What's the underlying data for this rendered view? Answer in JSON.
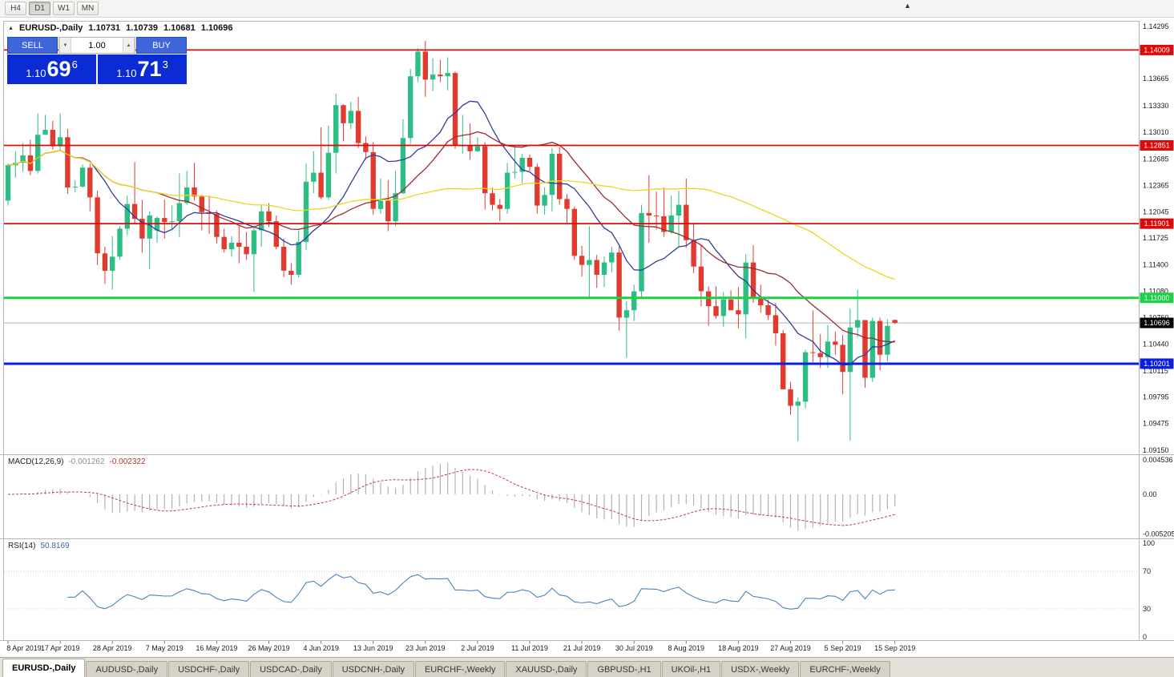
{
  "colors": {
    "candle_up": "#2EBD85",
    "candle_down": "#E13B30",
    "macd_hist": "#B2B2B2",
    "macd_signal": "#C73B3B",
    "rsi_line": "#4F81BD",
    "sell_buy_button": "#3E66DA",
    "price_panel": "#0B2BD4",
    "current_price_tag": "#000000",
    "level_red": "#DE0A0A",
    "level_green": "#1DD045",
    "level_blue": "#0A1EE6"
  },
  "icons": {
    "title_marker": "▲",
    "chart_shift": "▲",
    "spin_up": "▲",
    "spin_down": "▼"
  },
  "toolbar": {
    "timeframes": [
      {
        "label": "H4",
        "active": false
      },
      {
        "label": "D1",
        "active": true
      },
      {
        "label": "W1",
        "active": false
      },
      {
        "label": "MN",
        "active": false
      }
    ]
  },
  "chart_header": {
    "symbol_period": "EURUSD-,Daily",
    "open": "1.10731",
    "high": "1.10739",
    "low": "1.10681",
    "close": "1.10696"
  },
  "trade_panel": {
    "sell_label": "SELL",
    "buy_label": "BUY",
    "volume": "1.00",
    "bid": {
      "prefix": "1.10",
      "big": "69",
      "sup": "6"
    },
    "ask": {
      "prefix": "1.10",
      "big": "71",
      "sup": "3"
    }
  },
  "macd_panel": {
    "name": "MACD(12,26,9)",
    "main_value": "-0.001262",
    "signal_value": "-0.002322"
  },
  "rsi_panel": {
    "name": "RSI(14)",
    "value": "50.8169"
  },
  "tabs": [
    {
      "label": "EURUSD-,Daily",
      "active": true
    },
    {
      "label": "AUDUSD-,Daily",
      "active": false
    },
    {
      "label": "USDCHF-,Daily",
      "active": false
    },
    {
      "label": "USDCAD-,Daily",
      "active": false
    },
    {
      "label": "USDCNH-,Daily",
      "active": false
    },
    {
      "label": "EURCHF-,Weekly",
      "active": false
    },
    {
      "label": "XAUUSD-,Daily",
      "active": false
    },
    {
      "label": "GBPUSD-,H1",
      "active": false
    },
    {
      "label": "UKOil-,H1",
      "active": false
    },
    {
      "label": "USDX-,Weekly",
      "active": false
    },
    {
      "label": "EURCHF-,Weekly",
      "active": false
    }
  ],
  "chart_data": {
    "type": "candlestick",
    "symbol": "EURUSD-",
    "timeframe": "Daily",
    "y_range": [
      1.0915,
      1.14295
    ],
    "current_price": 1.10696,
    "current_price_label": "1.10696",
    "price_axis_labels": [
      "1.14295",
      "1.13980",
      "1.13665",
      "1.13330",
      "1.13010",
      "1.12685",
      "1.12365",
      "1.12045",
      "1.11725",
      "1.11400",
      "1.11080",
      "1.10760",
      "1.10440",
      "1.10115",
      "1.09795",
      "1.09475",
      "1.09150"
    ],
    "x_labels": [
      "8 Apr 2019",
      "17 Apr 2019",
      "28 Apr 2019",
      "7 May 2019",
      "16 May 2019",
      "26 May 2019",
      "4 Jun 2019",
      "13 Jun 2019",
      "23 Jun 2019",
      "2 Jul 2019",
      "11 Jul 2019",
      "21 Jul 2019",
      "30 Jul 2019",
      "8 Aug 2019",
      "18 Aug 2019",
      "27 Aug 2019",
      "5 Sep 2019",
      "15 Sep 2019"
    ],
    "horizontal_levels": [
      {
        "price": 1.14009,
        "label": "1.14009",
        "color": "#DE0A0A",
        "width": 1.8
      },
      {
        "price": 1.12851,
        "label": "1.12851",
        "color": "#DE0A0A",
        "width": 1.8
      },
      {
        "price": 1.11901,
        "label": "1.11901",
        "color": "#DE0A0A",
        "width": 1.8
      },
      {
        "price": 1.11,
        "label": "1.11000",
        "color": "#1DD045",
        "width": 3
      },
      {
        "price": 1.10201,
        "label": "1.10201",
        "color": "#0A1EE6",
        "width": 3
      }
    ],
    "moving_averages": [
      {
        "period": 10,
        "color": "#303C9B"
      },
      {
        "period": 21,
        "color": "#9B2D30"
      },
      {
        "period": 55,
        "color": "#EFD51E"
      }
    ],
    "macd": {
      "params": "12,26,9",
      "main": -0.001262,
      "signal": -0.002322,
      "axis_values": [
        0.004536,
        0,
        -0.005205
      ],
      "axis_labels": [
        "0.004536",
        "0.00",
        "-0.005205"
      ]
    },
    "rsi": {
      "period": 14,
      "value": 50.8169,
      "levels": [
        70,
        30
      ],
      "axis_values": [
        100,
        70,
        30,
        0
      ],
      "axis_labels": [
        "100",
        "70",
        "30",
        "0"
      ]
    },
    "candles_ohlc": [
      [
        1.1218,
        1.1263,
        1.1212,
        1.1261
      ],
      [
        1.1261,
        1.1278,
        1.1246,
        1.1264
      ],
      [
        1.1264,
        1.1288,
        1.1253,
        1.1273
      ],
      [
        1.1273,
        1.1292,
        1.1249,
        1.1254
      ],
      [
        1.1254,
        1.1324,
        1.1251,
        1.1298
      ],
      [
        1.1298,
        1.1322,
        1.1298,
        1.1304
      ],
      [
        1.1304,
        1.1315,
        1.128,
        1.1284
      ],
      [
        1.1284,
        1.1324,
        1.128,
        1.1295
      ],
      [
        1.1295,
        1.1305,
        1.1226,
        1.1234
      ],
      [
        1.1234,
        1.1243,
        1.1228,
        1.1235
      ],
      [
        1.1235,
        1.1262,
        1.1234,
        1.1258
      ],
      [
        1.1258,
        1.1263,
        1.1205,
        1.1222
      ],
      [
        1.1222,
        1.123,
        1.114,
        1.1154
      ],
      [
        1.1154,
        1.1162,
        1.1117,
        1.1133
      ],
      [
        1.1133,
        1.1175,
        1.111,
        1.115
      ],
      [
        1.115,
        1.1187,
        1.1146,
        1.1184
      ],
      [
        1.1184,
        1.1224,
        1.1176,
        1.1214
      ],
      [
        1.1214,
        1.1265,
        1.119,
        1.1196
      ],
      [
        1.1196,
        1.1219,
        1.1155,
        1.1172
      ],
      [
        1.1172,
        1.1205,
        1.1135,
        1.12
      ],
      [
        1.1182,
        1.1199,
        1.1167,
        1.1197
      ],
      [
        1.1197,
        1.1219,
        1.1172,
        1.1192
      ],
      [
        1.1192,
        1.1212,
        1.1182,
        1.1193
      ],
      [
        1.1193,
        1.1251,
        1.1174,
        1.1215
      ],
      [
        1.1215,
        1.1254,
        1.1213,
        1.1234
      ],
      [
        1.1234,
        1.1264,
        1.1218,
        1.1223
      ],
      [
        1.1223,
        1.1225,
        1.1182,
        1.1204
      ],
      [
        1.1204,
        1.1224,
        1.1178,
        1.1202
      ],
      [
        1.1202,
        1.1206,
        1.1166,
        1.1174
      ],
      [
        1.1174,
        1.1184,
        1.1155,
        1.1159
      ],
      [
        1.1159,
        1.1175,
        1.115,
        1.1167
      ],
      [
        1.1167,
        1.1188,
        1.1142,
        1.1162
      ],
      [
        1.1162,
        1.118,
        1.1146,
        1.1153
      ],
      [
        1.1153,
        1.1188,
        1.1107,
        1.1182
      ],
      [
        1.1182,
        1.1213,
        1.1162,
        1.1205
      ],
      [
        1.1205,
        1.1215,
        1.1186,
        1.1193
      ],
      [
        1.1193,
        1.12,
        1.1159,
        1.1162
      ],
      [
        1.1162,
        1.1172,
        1.1125,
        1.1133
      ],
      [
        1.1133,
        1.1142,
        1.1116,
        1.1128
      ],
      [
        1.1128,
        1.1182,
        1.1125,
        1.1168
      ],
      [
        1.1168,
        1.1263,
        1.1158,
        1.1241
      ],
      [
        1.1241,
        1.1278,
        1.1227,
        1.1252
      ],
      [
        1.1252,
        1.1307,
        1.122,
        1.1222
      ],
      [
        1.1222,
        1.1309,
        1.1219,
        1.1276
      ],
      [
        1.1276,
        1.1348,
        1.1251,
        1.1334
      ],
      [
        1.1334,
        1.1335,
        1.129,
        1.1312
      ],
      [
        1.1312,
        1.1338,
        1.1305,
        1.1327
      ],
      [
        1.1327,
        1.1344,
        1.1282,
        1.1288
      ],
      [
        1.1288,
        1.1296,
        1.1268,
        1.1277
      ],
      [
        1.1277,
        1.1289,
        1.1201,
        1.1208
      ],
      [
        1.1208,
        1.1245,
        1.1202,
        1.1218
      ],
      [
        1.1218,
        1.1243,
        1.1181,
        1.1193
      ],
      [
        1.1193,
        1.1254,
        1.1187,
        1.1227
      ],
      [
        1.1227,
        1.1317,
        1.1226,
        1.1294
      ],
      [
        1.1294,
        1.1378,
        1.1287,
        1.1369
      ],
      [
        1.1369,
        1.1403,
        1.1362,
        1.1399
      ],
      [
        1.1399,
        1.1412,
        1.1344,
        1.1365
      ],
      [
        1.1365,
        1.1391,
        1.1351,
        1.1371
      ],
      [
        1.1371,
        1.1389,
        1.1362,
        1.1369
      ],
      [
        1.1369,
        1.1392,
        1.1352,
        1.1373
      ],
      [
        1.1373,
        1.1375,
        1.1281,
        1.1285
      ],
      [
        1.1285,
        1.1322,
        1.1275,
        1.1285
      ],
      [
        1.1285,
        1.1312,
        1.1268,
        1.1278
      ],
      [
        1.1278,
        1.1295,
        1.1277,
        1.1284
      ],
      [
        1.1284,
        1.1289,
        1.1207,
        1.1227
      ],
      [
        1.1227,
        1.1234,
        1.1206,
        1.1213
      ],
      [
        1.1213,
        1.122,
        1.1193,
        1.1208
      ],
      [
        1.1208,
        1.1264,
        1.1202,
        1.1252
      ],
      [
        1.1252,
        1.1285,
        1.1245,
        1.1253
      ],
      [
        1.1253,
        1.1275,
        1.1239,
        1.127
      ],
      [
        1.127,
        1.1274,
        1.1254,
        1.1259
      ],
      [
        1.1259,
        1.1263,
        1.1202,
        1.1212
      ],
      [
        1.1212,
        1.1234,
        1.1201,
        1.1225
      ],
      [
        1.1225,
        1.1282,
        1.1205,
        1.1275
      ],
      [
        1.1275,
        1.1283,
        1.1213,
        1.122
      ],
      [
        1.122,
        1.1226,
        1.1191,
        1.1208
      ],
      [
        1.1208,
        1.1211,
        1.1146,
        1.1151
      ],
      [
        1.1151,
        1.1163,
        1.1126,
        1.114
      ],
      [
        1.114,
        1.1187,
        1.1101,
        1.1146
      ],
      [
        1.1146,
        1.1152,
        1.1112,
        1.1128
      ],
      [
        1.1128,
        1.115,
        1.1113,
        1.1143
      ],
      [
        1.1143,
        1.1162,
        1.1131,
        1.1155
      ],
      [
        1.1155,
        1.1162,
        1.106,
        1.1076
      ],
      [
        1.1076,
        1.1096,
        1.1027,
        1.1085
      ],
      [
        1.1085,
        1.1116,
        1.1072,
        1.1108
      ],
      [
        1.1108,
        1.1213,
        1.1101,
        1.1203
      ],
      [
        1.1203,
        1.1249,
        1.1167,
        1.12
      ],
      [
        1.12,
        1.1229,
        1.1183,
        1.1199
      ],
      [
        1.1199,
        1.1234,
        1.1174,
        1.118
      ],
      [
        1.118,
        1.1224,
        1.1178,
        1.12
      ],
      [
        1.12,
        1.123,
        1.1162,
        1.1213
      ],
      [
        1.1213,
        1.1245,
        1.1161,
        1.117
      ],
      [
        1.117,
        1.1191,
        1.113,
        1.1138
      ],
      [
        1.1138,
        1.1165,
        1.109,
        1.1108
      ],
      [
        1.1108,
        1.1114,
        1.1066,
        1.109
      ],
      [
        1.109,
        1.1114,
        1.1075,
        1.1078
      ],
      [
        1.1078,
        1.1107,
        1.1065,
        1.1098
      ],
      [
        1.1098,
        1.1109,
        1.1085,
        1.1085
      ],
      [
        1.1085,
        1.1113,
        1.1063,
        1.108
      ],
      [
        1.108,
        1.1153,
        1.1051,
        1.1143
      ],
      [
        1.1143,
        1.1164,
        1.1094,
        1.1101
      ],
      [
        1.1101,
        1.1116,
        1.1082,
        1.1091
      ],
      [
        1.1091,
        1.1098,
        1.1073,
        1.1079
      ],
      [
        1.1079,
        1.1094,
        1.1042,
        1.1057
      ],
      [
        1.1057,
        1.1061,
        1.0989,
        1.0989
      ],
      [
        1.0989,
        1.0998,
        1.0958,
        1.0969
      ],
      [
        1.0969,
        1.0979,
        1.0926,
        1.0974
      ],
      [
        1.0974,
        1.1037,
        1.0966,
        1.1034
      ],
      [
        1.1034,
        1.1085,
        1.1022,
        1.1033
      ],
      [
        1.1033,
        1.1056,
        1.1015,
        1.1028
      ],
      [
        1.1028,
        1.1067,
        1.1015,
        1.1047
      ],
      [
        1.1047,
        1.1059,
        1.1031,
        1.1043
      ],
      [
        1.1043,
        1.1055,
        1.0983,
        1.101
      ],
      [
        1.101,
        1.1087,
        1.0927,
        1.1064
      ],
      [
        1.1064,
        1.111,
        1.1052,
        1.1073
      ],
      [
        1.1073,
        1.1073,
        1.0991,
        1.1003
      ],
      [
        1.1003,
        1.1076,
        1.0998,
        1.1072
      ],
      [
        1.1072,
        1.1076,
        1.1012,
        1.1031
      ],
      [
        1.1031,
        1.1074,
        1.1023,
        1.1066
      ],
      [
        1.10731,
        1.10739,
        1.10681,
        1.10696
      ]
    ]
  }
}
